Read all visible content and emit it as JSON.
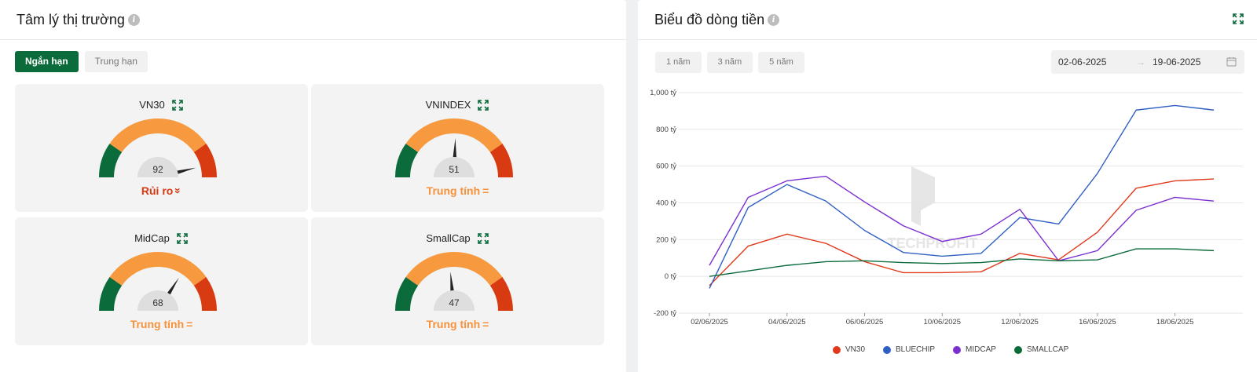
{
  "left": {
    "title": "Tâm lý thị trường",
    "tabs": [
      {
        "label": "Ngắn hạn",
        "active": true
      },
      {
        "label": "Trung hạn",
        "active": false
      }
    ],
    "gauges": [
      {
        "name": "VN30",
        "value": 92,
        "status": "Rủi ro",
        "status_type": "risk"
      },
      {
        "name": "VNINDEX",
        "value": 51,
        "status": "Trung tính",
        "status_type": "neutral"
      },
      {
        "name": "MidCap",
        "value": 68,
        "status": "Trung tính",
        "status_type": "neutral"
      },
      {
        "name": "SmallCap",
        "value": 47,
        "status": "Trung tính",
        "status_type": "neutral"
      }
    ],
    "colors": {
      "green": "#0b6b3a",
      "orange": "#f7993f",
      "red": "#d83a12"
    }
  },
  "right": {
    "title": "Biểu đồ dòng tiền",
    "ranges": [
      "1 năm",
      "3 năm",
      "5 năm"
    ],
    "date_from": "02-06-2025",
    "date_to": "19-06-2025",
    "watermark": "TECHPROFIT"
  },
  "chart_data": {
    "type": "line",
    "x": [
      "02/06/2025",
      "03/06/2025",
      "04/06/2025",
      "05/06/2025",
      "06/06/2025",
      "09/06/2025",
      "10/06/2025",
      "11/06/2025",
      "12/06/2025",
      "13/06/2025",
      "16/06/2025",
      "17/06/2025",
      "18/06/2025",
      "19/06/2025"
    ],
    "x_tick_labels": [
      "02/06/2025",
      "04/06/2025",
      "06/06/2025",
      "10/06/2025",
      "12/06/2025",
      "16/06/2025",
      "18/06/2025"
    ],
    "y_tick_labels": [
      "1,000 tỷ",
      "800 tỷ",
      "600 tỷ",
      "400 tỷ",
      "200 tỷ",
      "0 tỷ",
      "-200 tỷ"
    ],
    "y_ticks": [
      1000,
      800,
      600,
      400,
      200,
      0,
      -200
    ],
    "ylim": [
      -200,
      1000
    ],
    "series": [
      {
        "name": "VN30",
        "color": "#e0391c",
        "values": [
          -50,
          165,
          230,
          180,
          80,
          20,
          20,
          25,
          125,
          90,
          240,
          480,
          520,
          530
        ]
      },
      {
        "name": "BLUECHIP",
        "color": "#2f5fc4",
        "values": [
          -65,
          375,
          500,
          410,
          250,
          130,
          110,
          125,
          320,
          285,
          560,
          905,
          930,
          905
        ]
      },
      {
        "name": "MIDCAP",
        "color": "#7b2fd0",
        "values": [
          60,
          430,
          520,
          545,
          405,
          275,
          190,
          230,
          365,
          85,
          140,
          360,
          430,
          410
        ]
      },
      {
        "name": "SMALLCAP",
        "color": "#0b6b3a",
        "values": [
          0,
          30,
          60,
          80,
          85,
          75,
          70,
          75,
          95,
          85,
          90,
          150,
          150,
          140
        ]
      }
    ]
  }
}
